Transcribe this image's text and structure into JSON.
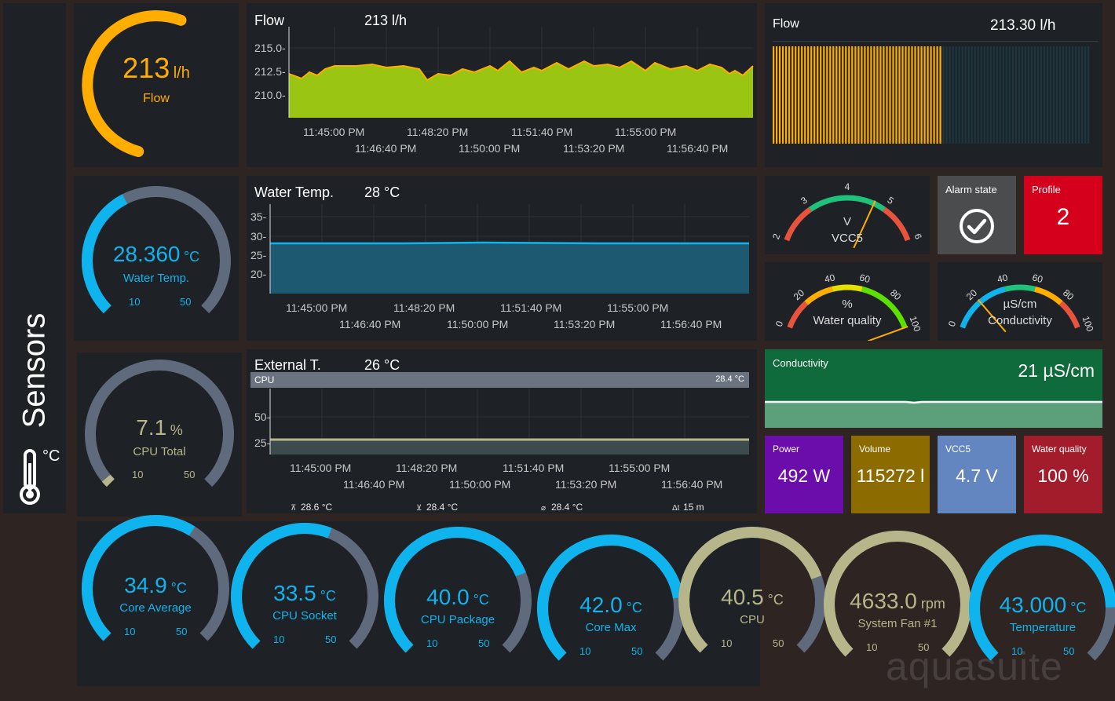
{
  "sidebar": {
    "title": "Sensors",
    "unit": "°C",
    "icon": "thermometer-icon"
  },
  "colors": {
    "orange": "#ffad00",
    "blue": "#0fb4ee",
    "gray": "#5f6b7c",
    "khaki": "#b7b58a",
    "lime": "#9ac512"
  },
  "flow_gauge": {
    "value": "213",
    "unit": "l/h",
    "label": "Flow",
    "fraction": 0.62
  },
  "water_gauge": {
    "value": "28.360",
    "unit": "°C",
    "label": "Water Temp.",
    "min": "10",
    "max": "50",
    "fraction": 0.4
  },
  "cpu_gauge": {
    "value": "7.1",
    "unit": "%",
    "label": "CPU Total",
    "min": "10",
    "max": "50",
    "fraction": 0.02
  },
  "flow_chart": {
    "title": "Flow",
    "value": "213 l/h",
    "yticks": [
      "215.0-",
      "212.5-",
      "210.0-"
    ],
    "xticks_top": [
      "11:45:00 PM",
      "11:48:20 PM",
      "11:51:40 PM",
      "11:55:00 PM"
    ],
    "xticks_bottom": [
      "11:46:40 PM",
      "11:50:00 PM",
      "11:53:20 PM",
      "11:56:40 PM"
    ]
  },
  "water_chart": {
    "title": "Water Temp.",
    "value": "28 °C",
    "yticks": [
      "35-",
      "30-",
      "25-",
      "20-"
    ],
    "xticks_top": [
      "11:45:00 PM",
      "11:48:20 PM",
      "11:51:40 PM",
      "11:55:00 PM"
    ],
    "xticks_bottom": [
      "11:46:40 PM",
      "11:50:00 PM",
      "11:53:20 PM",
      "11:56:40 PM"
    ]
  },
  "ext_chart": {
    "title": "External T.",
    "value": "26 °C",
    "series_label": "CPU",
    "series_value": "28.4 °C",
    "yticks": [
      "50-",
      "25-"
    ],
    "xticks_top": [
      "11:45:00 PM",
      "11:48:20 PM",
      "11:51:40 PM",
      "11:55:00 PM"
    ],
    "xticks_bottom": [
      "11:46:40 PM",
      "11:50:00 PM",
      "11:53:20 PM",
      "11:56:40 PM"
    ],
    "stats": [
      {
        "icon": "max-icon",
        "text": "28.6 °C"
      },
      {
        "icon": "min-icon",
        "text": "28.4 °C"
      },
      {
        "icon": "avg-icon",
        "text": "28.4 °C"
      },
      {
        "icon": "timespan-icon",
        "text": "15 m"
      }
    ]
  },
  "flow_bars": {
    "title": "Flow",
    "value": "213.30 l/h",
    "fill_fraction": 0.53
  },
  "vcc_dial": {
    "ticks": [
      "2",
      "3",
      "4",
      "5",
      "6"
    ],
    "unit": "V",
    "label": "VCC5",
    "value": 4.7
  },
  "alarm": {
    "title": "Alarm state",
    "icon": "check-circle-icon"
  },
  "profile": {
    "title": "Profile",
    "value": "2"
  },
  "wq_dial": {
    "ticks": [
      "0",
      "20",
      "40",
      "60",
      "80",
      "100"
    ],
    "unit": "%",
    "label": "Water quality",
    "value": 100
  },
  "cond_dial": {
    "ticks": [
      "0",
      "20",
      "40",
      "60",
      "80",
      "100"
    ],
    "unit": "µS/cm",
    "label": "Conductivity",
    "value": 21
  },
  "cond_tile": {
    "title": "Conductivity",
    "value": "21 µS/cm"
  },
  "tiles": [
    {
      "title": "Power",
      "value": "492 W",
      "color": "#6a0daa"
    },
    {
      "title": "Volume",
      "value": "115272 l",
      "color": "#8c6b00"
    },
    {
      "title": "VCC5",
      "value": "4.7 V",
      "color": "#6386c0"
    },
    {
      "title": "Water quality",
      "value": "100 %",
      "color": "#a31c2c"
    }
  ],
  "bottom_gauges": [
    {
      "value": "34.9",
      "unit": "°C",
      "label": "Core Average",
      "min": "10",
      "max": "50",
      "color": "#0fb4ee",
      "fraction": 0.62
    },
    {
      "value": "33.5",
      "unit": "°C",
      "label": "CPU Socket",
      "min": "10",
      "max": "50",
      "color": "#0fb4ee",
      "fraction": 0.58
    },
    {
      "value": "40.0",
      "unit": "°C",
      "label": "CPU Package",
      "min": "10",
      "max": "50",
      "color": "#0fb4ee",
      "fraction": 0.75
    },
    {
      "value": "42.0",
      "unit": "°C",
      "label": "Core Max",
      "min": "10",
      "max": "50",
      "color": "#0fb4ee",
      "fraction": 0.8
    },
    {
      "value": "40.5",
      "unit": "°C",
      "label": "CPU",
      "min": "10",
      "max": "50",
      "color": "#b7b58a",
      "fraction": 0.76
    },
    {
      "value": "4633.0",
      "unit": "rpm",
      "label": "System Fan #1",
      "min": "10",
      "max": "50",
      "color": "#b7b58a",
      "fraction": 1.0
    },
    {
      "value": "43.000",
      "unit": "°C",
      "label": "Temperature",
      "min": "10",
      "max": "50",
      "color": "#0fb4ee",
      "fraction": 0.83
    }
  ],
  "watermark": "aquasuite"
}
